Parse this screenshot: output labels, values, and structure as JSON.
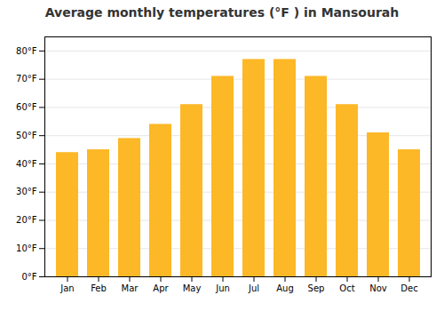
{
  "chart_data": {
    "type": "bar",
    "title": "Average monthly temperatures (°F ) in Mansourah",
    "categories": [
      "Jan",
      "Feb",
      "Mar",
      "Apr",
      "May",
      "Jun",
      "Jul",
      "Aug",
      "Sep",
      "Oct",
      "Nov",
      "Dec"
    ],
    "values": [
      44,
      45,
      49,
      54,
      61,
      71,
      77,
      77,
      71,
      61,
      51,
      45
    ],
    "color": "#FDB827",
    "ylim": [
      0,
      85
    ],
    "yticks": [
      {
        "value": 0,
        "label": "0°F"
      },
      {
        "value": 10,
        "label": "10°F"
      },
      {
        "value": 20,
        "label": "20°F"
      },
      {
        "value": 30,
        "label": "30°F"
      },
      {
        "value": 40,
        "label": "40°F"
      },
      {
        "value": 50,
        "label": "50°F"
      },
      {
        "value": 60,
        "label": "60°F"
      },
      {
        "value": 70,
        "label": "70°F"
      },
      {
        "value": 80,
        "label": "80°F"
      }
    ],
    "grid": true
  }
}
